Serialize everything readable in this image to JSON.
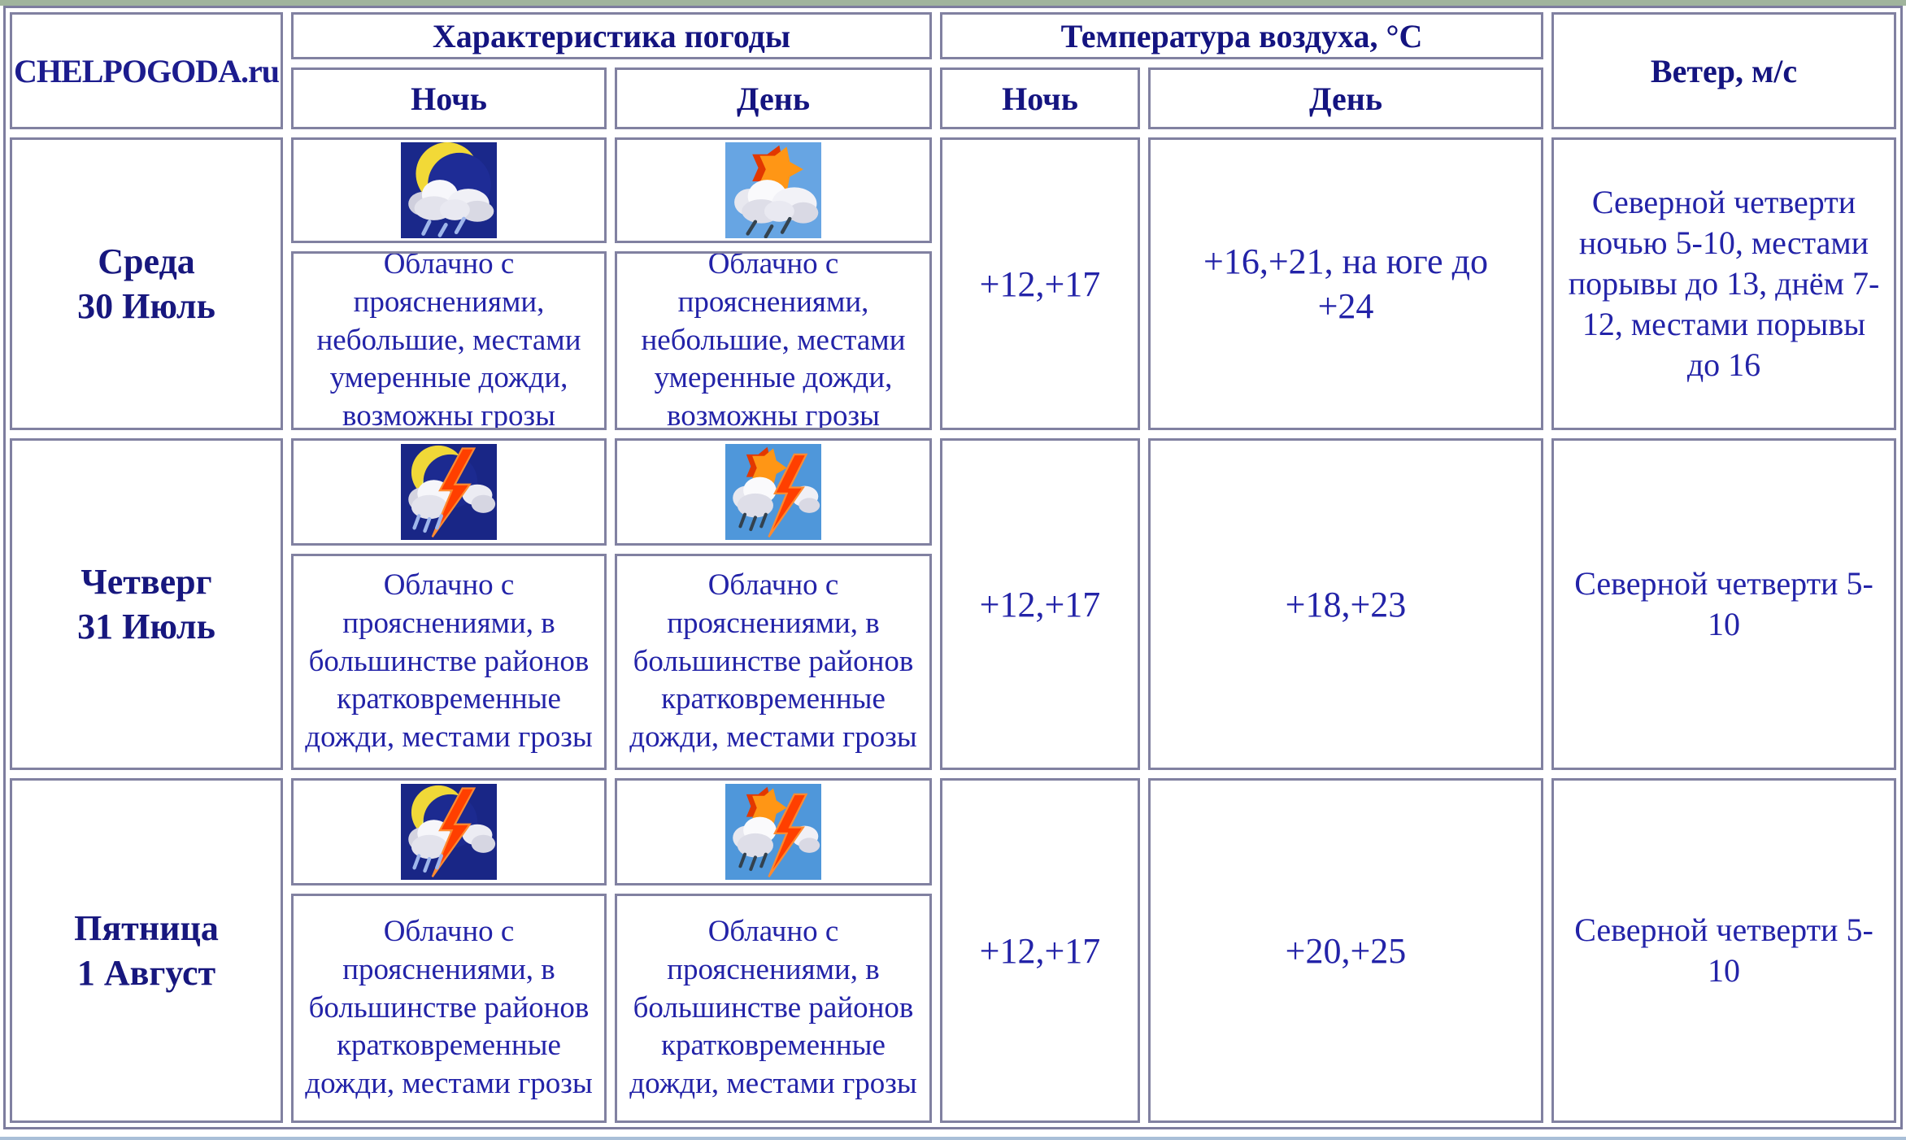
{
  "page": {
    "top_strip_color": "#a0b49c",
    "bottom_strip_color": "#a9bfd8",
    "border_color": "#8181a1",
    "header_text_color": "#141480",
    "body_text_color": "#2323a8"
  },
  "header": {
    "logo": "CHELPOGODA.ru",
    "characteristics": "Характеристика погоды",
    "temperature": "Температура воздуха, °С",
    "wind": "Ветер, м/с",
    "char_night": "Ночь",
    "char_day": "День",
    "temp_night": "Ночь",
    "temp_day": "День"
  },
  "rows": [
    {
      "weekday": "Среда",
      "date": "30 Июль",
      "night": {
        "icon": "night-rain",
        "text": "Облачно с прояснениями, небольшие, местами умеренные дожди, возможны грозы"
      },
      "day": {
        "icon": "day-rain",
        "text": "Облачно с прояснениями, небольшие, местами умеренные дожди, возможны грозы"
      },
      "temp_night": "+12,+17",
      "temp_day": "+16,+21, на юге до +24",
      "wind": "Северной четверти ночью 5-10, местами порывы до 13, днём 7-12, местами порывы до 16"
    },
    {
      "weekday": "Четверг",
      "date": "31 Июль",
      "night": {
        "icon": "night-thunder",
        "text": "Облачно с прояснениями, в большинстве районов кратковременные дожди, местами грозы"
      },
      "day": {
        "icon": "day-thunder",
        "text": "Облачно с прояснениями, в большинстве районов кратковременные дожди, местами грозы"
      },
      "temp_night": "+12,+17",
      "temp_day": "+18,+23",
      "wind": "Северной четверти 5-10"
    },
    {
      "weekday": "Пятница",
      "date": "1 Август",
      "night": {
        "icon": "night-thunder",
        "text": "Облачно с прояснениями, в большинстве районов кратковременные дожди, местами грозы"
      },
      "day": {
        "icon": "day-thunder",
        "text": "Облачно с прояснениями, в большинстве районов кратковременные дожди, местами грозы"
      },
      "temp_night": "+12,+17",
      "temp_day": "+20,+25",
      "wind": "Северной четверти 5-10"
    }
  ]
}
